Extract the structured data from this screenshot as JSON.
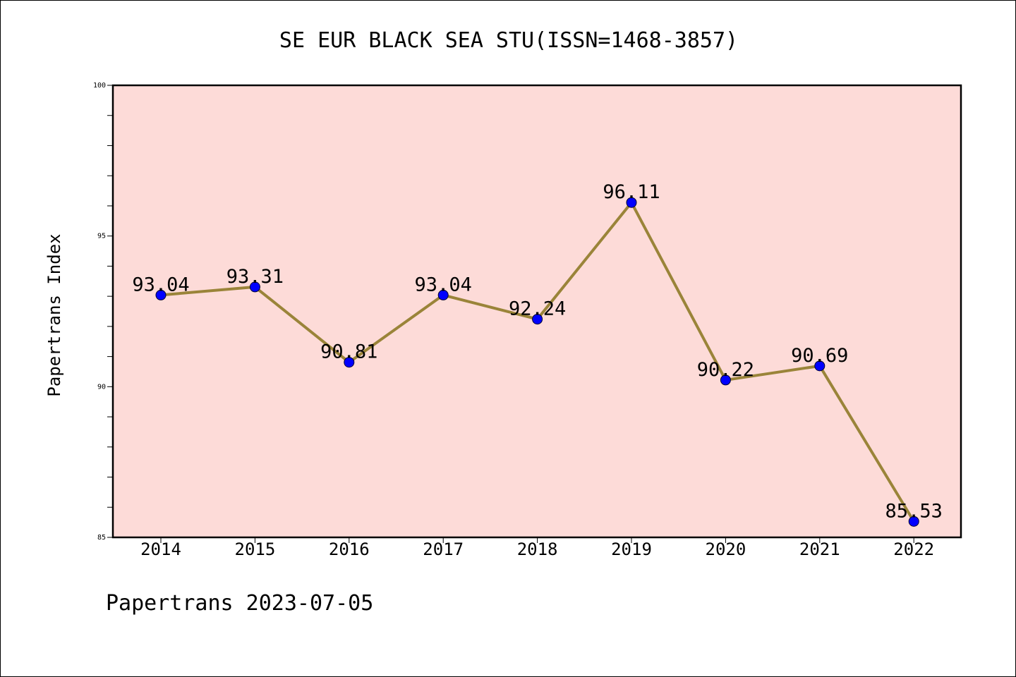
{
  "chart_data": {
    "type": "line",
    "title": "SE EUR BLACK SEA STU(ISSN=1468-3857)",
    "xlabel": "",
    "ylabel": "Papertrans Index",
    "categories": [
      "2014",
      "2015",
      "2016",
      "2017",
      "2018",
      "2019",
      "2020",
      "2021",
      "2022"
    ],
    "values": [
      93.04,
      93.31,
      90.81,
      93.04,
      92.24,
      96.11,
      90.22,
      90.69,
      85.53
    ],
    "data_labels": [
      "93.04",
      "93.31",
      "90.81",
      "93.04",
      "92.24",
      "96.11",
      "90.22",
      "90.69",
      "85.53"
    ],
    "ylim": [
      85,
      100
    ],
    "yticks": [
      85,
      90,
      95,
      100
    ],
    "ytick_labels": [
      "85",
      "90",
      "95",
      "100"
    ],
    "y_minor_step": 1,
    "grid": false,
    "legend": "none",
    "footer": "Papertrans 2023-07-05",
    "colors": {
      "plot_background": "#fddbd8",
      "line": "#9a8439",
      "marker": "#0000ff",
      "axis": "#000000"
    }
  }
}
